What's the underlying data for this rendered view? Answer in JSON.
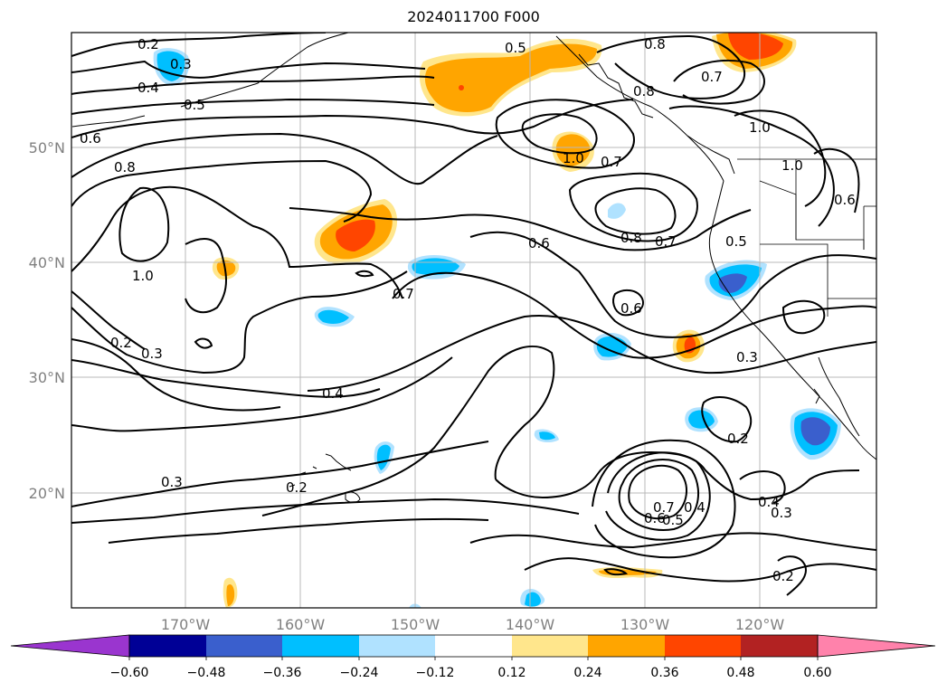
{
  "title": "2024011700 F000",
  "map": {
    "lat_labels": [
      "50°N",
      "40°N",
      "30°N",
      "20°N"
    ],
    "lon_labels": [
      "170°W",
      "160°W",
      "150°W",
      "140°W",
      "130°W",
      "120°W"
    ]
  },
  "contour_labels": [
    {
      "name": "c-0-2-a",
      "text": "0.2"
    },
    {
      "name": "c-0-3-a",
      "text": "0.3"
    },
    {
      "name": "c-0-4-a",
      "text": "0.4"
    },
    {
      "name": "c-0-5-a",
      "text": "0.5"
    },
    {
      "name": "c-0-6-a",
      "text": "0.6"
    },
    {
      "name": "c-0-8-a",
      "text": "0.8"
    },
    {
      "name": "c-1-0-a",
      "text": "1.0"
    },
    {
      "name": "c-0-2-b",
      "text": "0.2"
    },
    {
      "name": "c-0-3-b",
      "text": "0.3"
    },
    {
      "name": "c-0-4-b",
      "text": "0.4"
    },
    {
      "name": "c-0-3-c",
      "text": "0.3"
    },
    {
      "name": "c-0-2-c",
      "text": "0.2"
    },
    {
      "name": "c-0-7-a",
      "text": "0.7"
    },
    {
      "name": "c-0-5-b",
      "text": "0.5"
    },
    {
      "name": "c-0-8-b",
      "text": "0.8"
    },
    {
      "name": "c-0-8-c",
      "text": "0.8"
    },
    {
      "name": "c-0-7-b",
      "text": "0.7"
    },
    {
      "name": "c-1-0-b",
      "text": "1.0"
    },
    {
      "name": "c-1-0-c",
      "text": "1.0"
    },
    {
      "name": "c-0-7-c",
      "text": "0.7"
    },
    {
      "name": "c-0-6-b",
      "text": "0.6"
    },
    {
      "name": "c-0-8-d",
      "text": "0.8"
    },
    {
      "name": "c-0-7-d",
      "text": "0.7"
    },
    {
      "name": "c-0-5-c",
      "text": "0.5"
    },
    {
      "name": "c-0-6-c",
      "text": "0.6"
    },
    {
      "name": "c-0-3-d",
      "text": "0.3"
    },
    {
      "name": "c-0-2-d",
      "text": "0.2"
    },
    {
      "name": "c-0-4-c",
      "text": "0.4"
    },
    {
      "name": "c-0-3-e",
      "text": "0.3"
    },
    {
      "name": "c-0-2-e",
      "text": "0.2"
    },
    {
      "name": "c-0-7-e",
      "text": "0.7"
    },
    {
      "name": "c-0-6-d",
      "text": "0.6"
    },
    {
      "name": "c-0-5-d",
      "text": "0.5"
    },
    {
      "name": "c-0-4-d",
      "text": "0.4"
    },
    {
      "name": "c-1-0-d",
      "text": "1.0"
    },
    {
      "name": "c-0-6-e",
      "text": "0.6"
    }
  ],
  "colorbar": {
    "tick_labels": [
      "−0.60",
      "−0.48",
      "−0.36",
      "−0.24",
      "−0.12",
      "0.12",
      "0.24",
      "0.36",
      "0.48",
      "0.60"
    ],
    "colors": [
      "#9a35cf",
      "#000096",
      "#3a5fcd",
      "#00bfff",
      "#b0e2ff",
      "#ffffff",
      "#ffe68c",
      "#ffa500",
      "#ff4500",
      "#b22222",
      "#ff82ab"
    ]
  }
}
